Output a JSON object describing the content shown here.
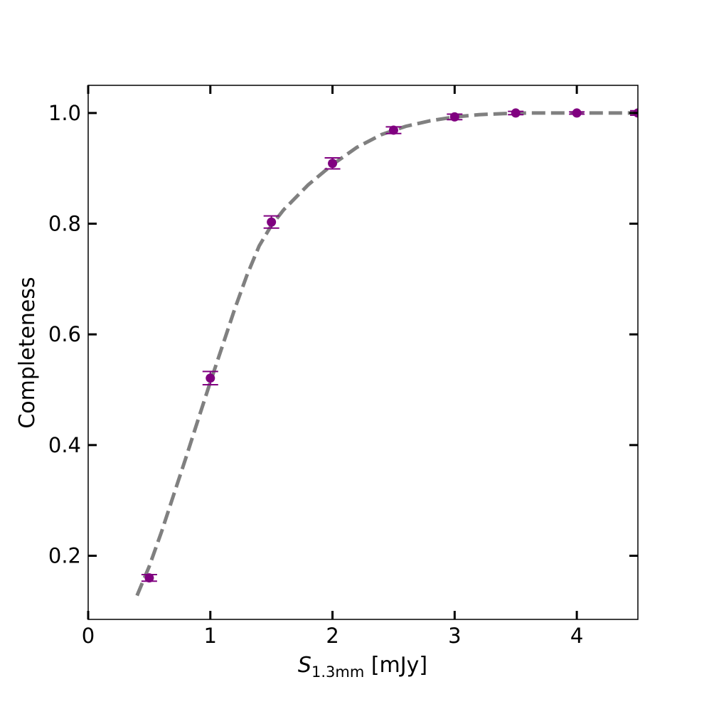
{
  "chart_data": {
    "type": "scatter",
    "title": "",
    "xlabel": {
      "symbol": "S",
      "subscript": "1.3mm",
      "unit": " [mJy]"
    },
    "ylabel": "Completeness",
    "xlim": [
      0,
      4.5
    ],
    "ylim": [
      0.085,
      1.05
    ],
    "xticks": [
      0,
      1,
      2,
      3,
      4
    ],
    "xtick_labels": [
      "0",
      "1",
      "2",
      "3",
      "4"
    ],
    "yticks": [
      0.2,
      0.4,
      0.6,
      0.8,
      1.0
    ],
    "ytick_labels": [
      "0.2",
      "0.4",
      "0.6",
      "0.8",
      "1.0"
    ],
    "grid": false,
    "legend": "none",
    "series": [
      {
        "kind": "points_with_errorbars",
        "color": "#800080",
        "x": [
          0.5,
          1.0,
          1.5,
          2.0,
          2.5,
          3.0,
          3.5,
          4.0,
          4.5
        ],
        "y": [
          0.16,
          0.521,
          0.803,
          0.909,
          0.969,
          0.993,
          1.0,
          1.0,
          1.0
        ],
        "yerr": [
          0.006,
          0.012,
          0.011,
          0.01,
          0.006,
          0.005,
          0.003,
          0.002,
          0.004
        ]
      },
      {
        "kind": "dashed_curve",
        "color": "#808080",
        "x": [
          0.4,
          0.5,
          0.6,
          0.7,
          0.8,
          0.9,
          1.0,
          1.1,
          1.2,
          1.3,
          1.4,
          1.5,
          1.6,
          1.8,
          2.0,
          2.2,
          2.4,
          2.6,
          2.8,
          3.0,
          3.2,
          3.4,
          3.6,
          3.8,
          4.0,
          4.2,
          4.5
        ],
        "y": [
          0.128,
          0.181,
          0.243,
          0.31,
          0.377,
          0.446,
          0.514,
          0.58,
          0.646,
          0.707,
          0.76,
          0.797,
          0.825,
          0.87,
          0.907,
          0.938,
          0.961,
          0.976,
          0.986,
          0.993,
          0.997,
          0.999,
          1.0,
          1.0,
          1.0,
          1.0,
          1.0
        ]
      }
    ]
  }
}
